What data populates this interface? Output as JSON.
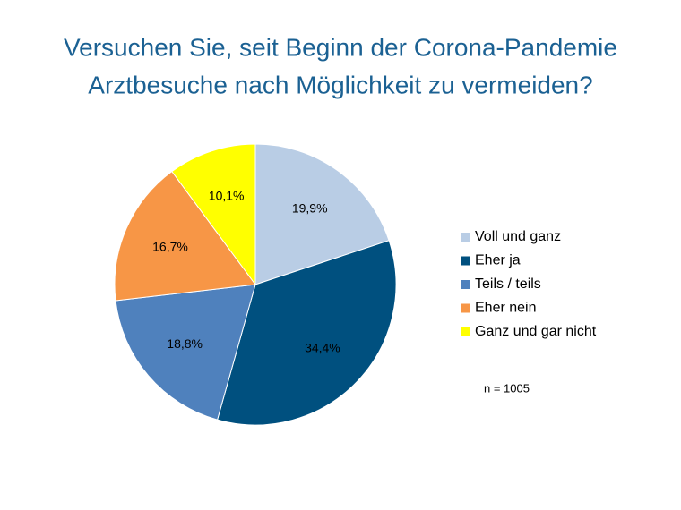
{
  "chart_data": {
    "type": "pie",
    "title": [
      "Versuchen Sie, seit Beginn der Corona-Pandemie",
      "Arztbesuche nach Möglichkeit zu vermeiden?"
    ],
    "categories": [
      "Voll und ganz",
      "Eher ja",
      "Teils / teils",
      "Eher nein",
      "Ganz und gar nicht"
    ],
    "values": [
      19.9,
      34.4,
      18.8,
      16.7,
      10.1
    ],
    "value_labels": [
      "19,9%",
      "34,4%",
      "18,8%",
      "16,7%",
      "10,1%"
    ],
    "colors": [
      "#b9cde5",
      "#00507f",
      "#4f81bd",
      "#f79646",
      "#ffff00"
    ],
    "annotation": "n = 1005",
    "legend": "right"
  }
}
